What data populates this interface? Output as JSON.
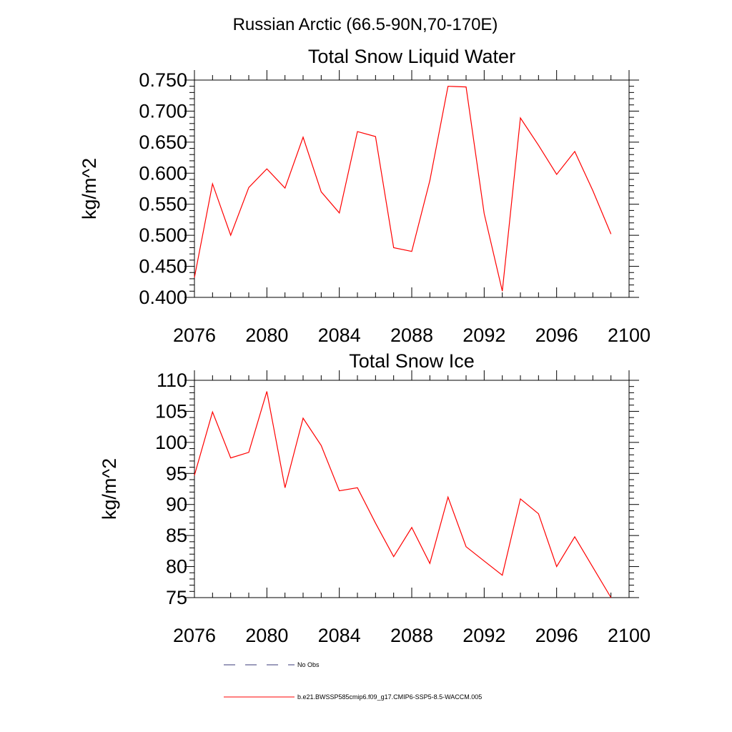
{
  "figure": {
    "main_title": "Russian Arctic (66.5-90N,70-170E)"
  },
  "chart_data": [
    {
      "type": "line",
      "title": "Total Snow Liquid Water",
      "xlabel": "",
      "ylabel": "kg/m^2",
      "xlim": [
        2076,
        2100
      ],
      "ylim": [
        0.4,
        0.75
      ],
      "x_ticks": [
        "2076",
        "2080",
        "2084",
        "2088",
        "2092",
        "2096",
        "2100"
      ],
      "y_ticks": [
        "0.400",
        "0.450",
        "0.500",
        "0.550",
        "0.600",
        "0.650",
        "0.700",
        "0.750"
      ],
      "grid": false,
      "series": [
        {
          "name": "b.e21.BWSSP585cmip6.f09_g17.CMIP6-SSP5-8.5-WACCM.005",
          "color": "#ff0000",
          "x": [
            2076,
            2077,
            2078,
            2079,
            2080,
            2081,
            2082,
            2083,
            2084,
            2085,
            2086,
            2087,
            2088,
            2089,
            2090,
            2091,
            2092,
            2093,
            2094,
            2095,
            2096,
            2097,
            2098,
            2099
          ],
          "y": [
            0.432,
            0.583,
            0.5,
            0.577,
            0.607,
            0.576,
            0.658,
            0.57,
            0.536,
            0.667,
            0.659,
            0.48,
            0.474,
            0.588,
            0.74,
            0.739,
            0.535,
            0.41,
            0.689,
            0.645,
            0.598,
            0.635,
            0.572,
            0.502
          ]
        }
      ]
    },
    {
      "type": "line",
      "title": "Total Snow Ice",
      "xlabel": "",
      "ylabel": "kg/m^2",
      "xlim": [
        2076,
        2100
      ],
      "ylim": [
        75,
        110
      ],
      "x_ticks": [
        "2076",
        "2080",
        "2084",
        "2088",
        "2092",
        "2096",
        "2100"
      ],
      "y_ticks": [
        "75",
        "80",
        "85",
        "90",
        "95",
        "100",
        "105",
        "110"
      ],
      "grid": false,
      "series": [
        {
          "name": "b.e21.BWSSP585cmip6.f09_g17.CMIP6-SSP5-8.5-WACCM.005",
          "color": "#ff0000",
          "x": [
            2076,
            2077,
            2078,
            2079,
            2080,
            2081,
            2082,
            2083,
            2084,
            2085,
            2086,
            2087,
            2088,
            2089,
            2090,
            2091,
            2092,
            2093,
            2094,
            2095,
            2096,
            2097,
            2098,
            2099
          ],
          "y": [
            94.7,
            104.9,
            97.5,
            98.4,
            108.2,
            92.7,
            103.9,
            99.5,
            92.2,
            92.7,
            87.0,
            81.6,
            86.3,
            80.5,
            91.2,
            83.2,
            80.9,
            78.6,
            90.9,
            88.5,
            80.0,
            84.8,
            79.9,
            75.0
          ]
        }
      ]
    }
  ],
  "legend": {
    "placement": "bottom",
    "entries": [
      {
        "label": "No Obs",
        "style": "dashed",
        "color": "#3a3a7a"
      },
      {
        "label": "b.e21.BWSSP585cmip6.f09_g17.CMIP6-SSP5-8.5-WACCM.005",
        "style": "solid",
        "color": "#ff0000"
      }
    ]
  }
}
